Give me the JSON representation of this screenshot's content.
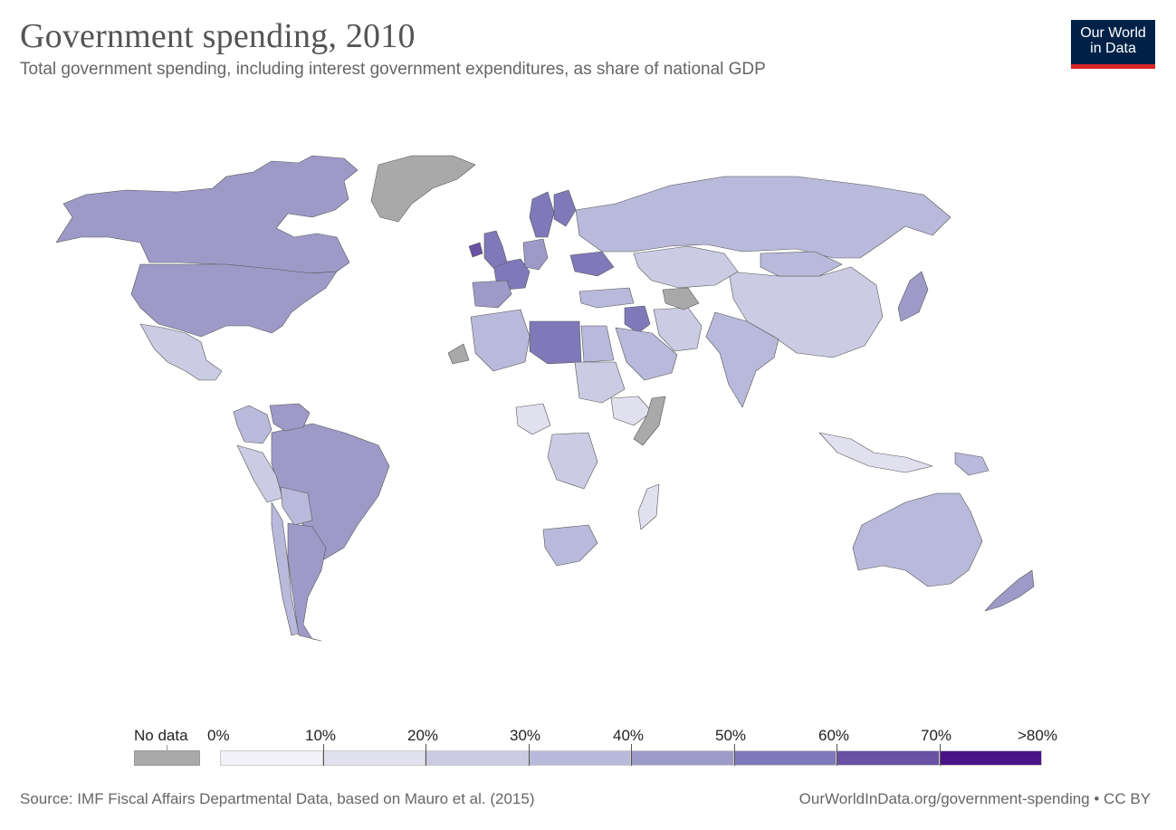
{
  "title": "Government spending, 2010",
  "subtitle": "Total government spending, including interest government expenditures, as share of national GDP",
  "logo": {
    "line1": "Our World",
    "line2": "in Data",
    "bg_color": "#002147",
    "accent_color": "#dc2626"
  },
  "legend": {
    "no_data_label": "No data",
    "no_data_color": "#a9a9a9",
    "tick_labels": [
      "0%",
      "10%",
      "20%",
      "30%",
      "40%",
      "50%",
      "60%",
      "70%",
      ">80%"
    ],
    "bin_colors": [
      "#f3f1f8",
      "#e1e0ef",
      "#cbcbe3",
      "#b9b9db",
      "#9e9ac8",
      "#8079b9",
      "#6a51a3",
      "#4a1486"
    ]
  },
  "map_colors": {
    "ocean": "#ffffff",
    "border": "#555555"
  },
  "regions": [
    {
      "name": "Canada",
      "shade": "40-50%"
    },
    {
      "name": "United States",
      "shade": "40-50%"
    },
    {
      "name": "Mexico",
      "shade": "20-30%"
    },
    {
      "name": "Greenland",
      "shade": "No data"
    },
    {
      "name": "Brazil",
      "shade": "40-50%"
    },
    {
      "name": "Argentina",
      "shade": "40-50%"
    },
    {
      "name": "Colombia",
      "shade": "30-40%"
    },
    {
      "name": "Peru",
      "shade": "20-30%"
    },
    {
      "name": "Venezuela",
      "shade": "40-50%"
    },
    {
      "name": "Chile",
      "shade": "30-40%"
    },
    {
      "name": "Bolivia",
      "shade": "30-40%"
    },
    {
      "name": "Russia",
      "shade": "30-40%"
    },
    {
      "name": "China",
      "shade": "20-30%"
    },
    {
      "name": "India",
      "shade": "30-40%"
    },
    {
      "name": "Kazakhstan",
      "shade": "20-30%"
    },
    {
      "name": "Mongolia",
      "shade": "30-40%"
    },
    {
      "name": "Japan",
      "shade": "40-50%"
    },
    {
      "name": "Australia",
      "shade": "30-40%"
    },
    {
      "name": "New Zealand",
      "shade": "40-50%"
    },
    {
      "name": "France",
      "shade": "50-60%"
    },
    {
      "name": "Germany",
      "shade": "40-50%"
    },
    {
      "name": "Spain",
      "shade": "40-50%"
    },
    {
      "name": "United Kingdom",
      "shade": "50-60%"
    },
    {
      "name": "Ireland",
      "shade": "60-70%"
    },
    {
      "name": "Sweden",
      "shade": "50-60%"
    },
    {
      "name": "Finland",
      "shade": "50-60%"
    },
    {
      "name": "Ukraine",
      "shade": "50-60%"
    },
    {
      "name": "Turkey",
      "shade": "30-40%"
    },
    {
      "name": "Iran",
      "shade": "20-30%"
    },
    {
      "name": "Iraq",
      "shade": "50-60%"
    },
    {
      "name": "Saudi Arabia",
      "shade": "30-40%"
    },
    {
      "name": "Libya",
      "shade": "50-60%"
    },
    {
      "name": "Algeria",
      "shade": "30-40%"
    },
    {
      "name": "Egypt",
      "shade": "30-40%"
    },
    {
      "name": "Sudan",
      "shade": "20-30%"
    },
    {
      "name": "Ethiopia",
      "shade": "10-20%"
    },
    {
      "name": "Somalia",
      "shade": "No data"
    },
    {
      "name": "Western Sahara",
      "shade": "No data"
    },
    {
      "name": "Nigeria",
      "shade": "10-20%"
    },
    {
      "name": "DR Congo",
      "shade": "20-30%"
    },
    {
      "name": "South Africa",
      "shade": "30-40%"
    },
    {
      "name": "Madagascar",
      "shade": "10-20%"
    },
    {
      "name": "Turkmenistan",
      "shade": "No data"
    },
    {
      "name": "Indonesia",
      "shade": "10-20%"
    },
    {
      "name": "Papua New Guinea",
      "shade": "30-40%"
    }
  ],
  "footer": {
    "source": "Source: IMF Fiscal Affairs Departmental Data, based on Mauro et al. (2015)",
    "url": "OurWorldInData.org/government-spending • CC BY"
  }
}
